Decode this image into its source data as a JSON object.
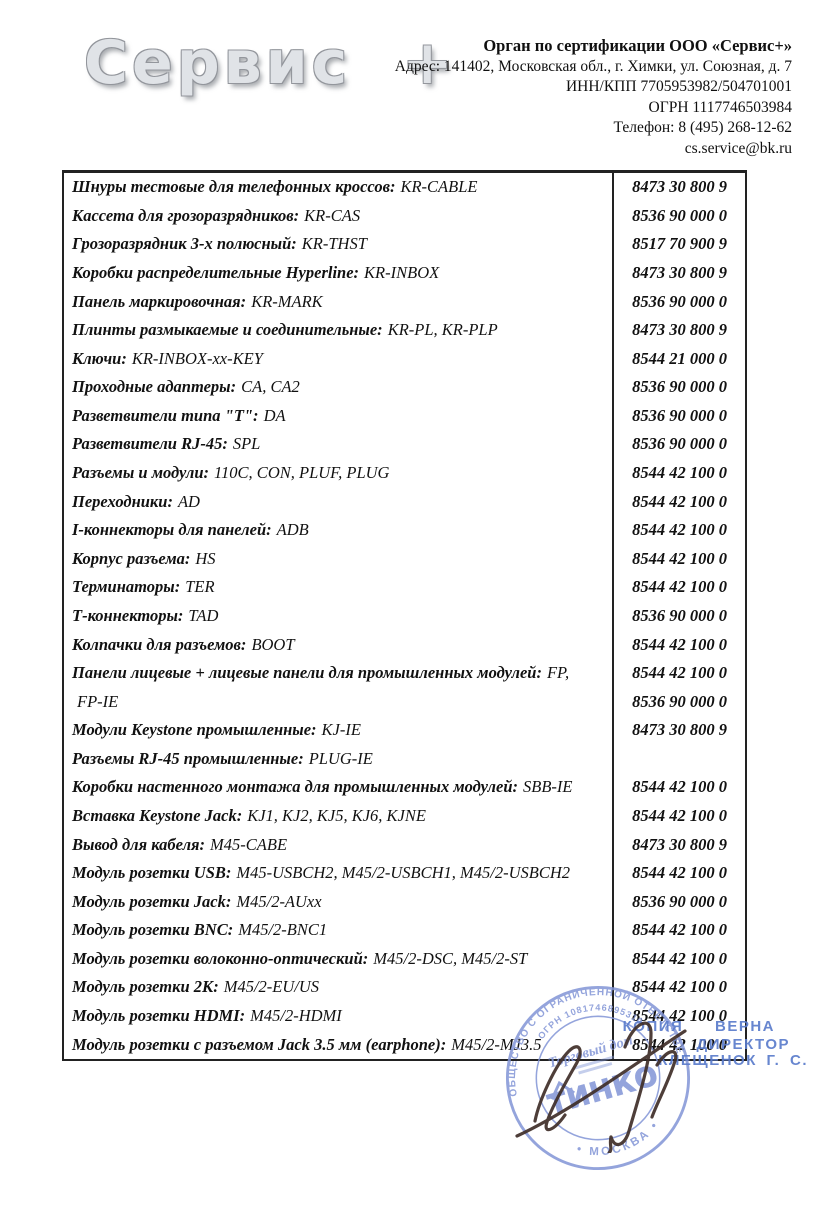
{
  "logo": {
    "text": "Сервис +"
  },
  "header": {
    "org_name": "Орган по сертификации ООО «Сервис+»",
    "address": "Адрес: 141402, Московская обл., г. Химки, ул. Союзная, д. 7",
    "inn_kpp": "ИНН/КПП 7705953982/504701001",
    "ogrn": "ОГРН 1117746503984",
    "phone": "Телефон: 8 (495) 268-12-62",
    "email": "cs.service@bk.ru"
  },
  "table": {
    "rows": [
      {
        "label": "Шнуры тестовые для телефонных кроссов:",
        "models": "KR-CABLE",
        "hs": "8473 30 800 9"
      },
      {
        "label": "Кассета для грозоразрядников:",
        "models": "KR-CAS",
        "hs": "8536 90 000 0"
      },
      {
        "label": "Грозоразрядник 3-х полюсный:",
        "models": "KR-THST",
        "hs": "8517 70 900 9"
      },
      {
        "label": "Коробки распределительные Hyperline:",
        "models": "KR-INBOX",
        "hs": "8473 30 800 9"
      },
      {
        "label": "Панель маркировочная:",
        "models": "KR-MARK",
        "hs": "8536 90 000 0"
      },
      {
        "label": "Плинты размыкаемые и соединительные:",
        "models": "KR-PL, KR-PLP",
        "hs": "8473 30 800 9"
      },
      {
        "label": "Ключи:",
        "models": "KR-INBOX-xx-KEY",
        "hs": "8544 21 000 0"
      },
      {
        "label": "Проходные адаптеры:",
        "models": "CA, CA2",
        "hs": "8536 90 000 0"
      },
      {
        "label": "Разветвители типа \"Т\":",
        "models": "DA",
        "hs": "8536 90 000 0"
      },
      {
        "label": "Разветвители RJ-45:",
        "models": "SPL",
        "hs": "8536 90 000 0"
      },
      {
        "label": "Разъемы и модули:",
        "models": "110C, CON, PLUF, PLUG",
        "hs": "8544 42 100 0"
      },
      {
        "label": "Переходники:",
        "models": "AD",
        "hs": "8544 42 100 0"
      },
      {
        "label": "I-коннекторы для панелей:",
        "models": "ADB",
        "hs": "8544 42 100 0"
      },
      {
        "label": "Корпус разъема:",
        "models": "HS",
        "hs": "8544 42 100 0"
      },
      {
        "label": "Терминаторы:",
        "models": "TER",
        "hs": "8544 42 100 0"
      },
      {
        "label": "Т-коннекторы:",
        "models": "TAD",
        "hs": "8536 90 000 0"
      },
      {
        "label": "Колпачки для разъемов:",
        "models": "BOOT",
        "hs": "8544 42 100 0"
      },
      {
        "label": "Панели лицевые + лицевые панели для промышленных модулей:",
        "models": "FP,",
        "hs": "8544 42 100 0"
      },
      {
        "label": "",
        "models": "FP-IE",
        "hs": "8536 90 000 0"
      },
      {
        "label": "Модули Keystone промышленные:",
        "models": "KJ-IE",
        "hs": "8473 30 800 9"
      },
      {
        "label": "Разъемы RJ-45 промышленные:",
        "models": "PLUG-IE",
        "hs": ""
      },
      {
        "label": "Коробки настенного монтажа для промышленных модулей:",
        "models": "SBB-IE",
        "hs": "8544 42 100 0"
      },
      {
        "label": "Вставка Keystone Jack:",
        "models": "KJ1, KJ2, KJ5, KJ6, KJNE",
        "hs": "8544 42 100 0"
      },
      {
        "label": "Вывод для кабеля:",
        "models": "M45-CABE",
        "hs": "8473 30 800 9"
      },
      {
        "label": "Модуль розетки USB:",
        "models": "M45-USBCH2, M45/2-USBCH1, M45/2-USBCH2",
        "hs": "8544 42 100 0"
      },
      {
        "label": "Модуль розетки Jack:",
        "models": "M45/2-AUxx",
        "hs": "8536 90 000 0"
      },
      {
        "label": "Модуль розетки BNC:",
        "models": "M45/2-BNC1",
        "hs": "8544 42 100 0"
      },
      {
        "label": "Модуль розетки волоконно-оптический:",
        "models": "M45/2-DSC, M45/2-ST",
        "hs": "8544 42 100 0"
      },
      {
        "label": "Модуль розетки 2К:",
        "models": "M45/2-EU/US",
        "hs": "8544 42 100 0"
      },
      {
        "label": "Модуль розетки HDMI:",
        "models": "M45/2-HDMI",
        "hs": "8544 42 100 0"
      },
      {
        "label": "Модуль розетки с разъемом Jack 3.5 мм (earphone):",
        "models": "M45/2-MJ3.5",
        "hs": "8544 42 100 0"
      }
    ]
  },
  "stamps": {
    "copy": {
      "line1": "КОПИЯ ВЕРНА",
      "line2": "ДИРЕКТОР",
      "line3": "КЛЕЩЕНОК Г. С."
    },
    "round": {
      "rim_top": "ОБЩЕСТВО С ОГРАНИЧЕННОЙ ОТВЕТСТВЕННОСТЬЮ",
      "ogrn_arc": "ОГРН 1081746895310",
      "trade_house": "Торговый дом",
      "name": "ТИНКО",
      "city": "• МОСКВА •"
    },
    "accent_blue": "#5b7ccc",
    "stamp_blue": "#8295d6"
  }
}
